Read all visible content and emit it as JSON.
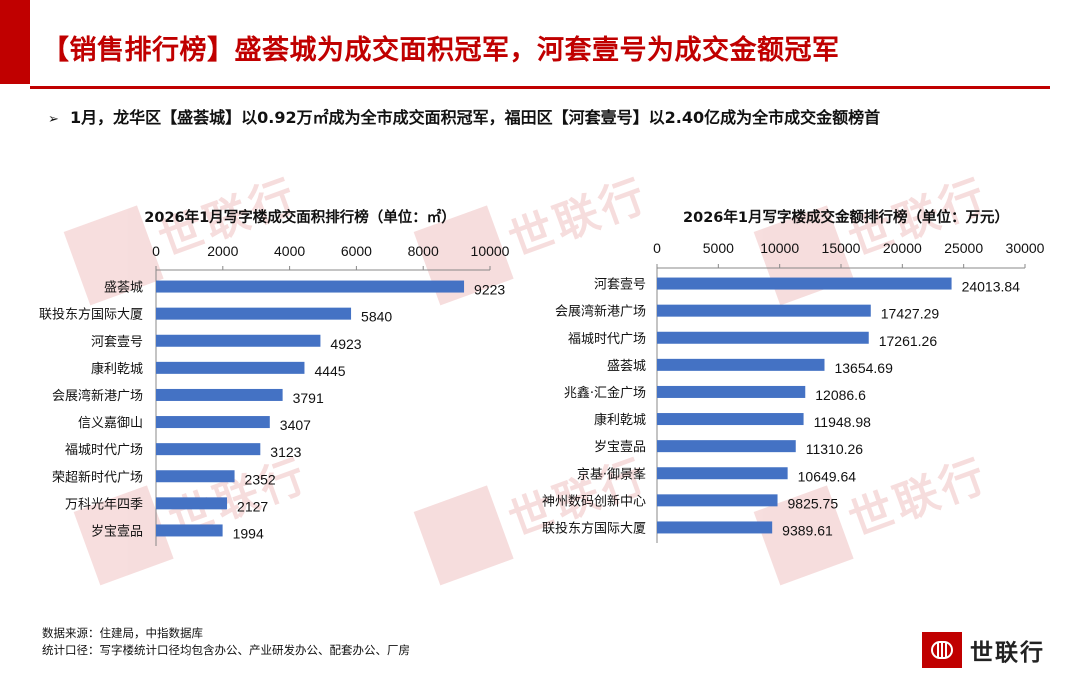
{
  "page": {
    "title": "【销售排行榜】盛荟城为成交面积冠军，河套壹号为成交金额冠军",
    "bullet_icon": "arrow-bullet-icon",
    "subtitle": "1月，龙华区【盛荟城】以0.92万㎡成为全市成交面积冠军，福田区【河套壹号】以2.40亿成为全市成交金额榜首",
    "footer": {
      "source": "数据来源：住建局，中指数据库",
      "scope": "统计口径：写字楼统计口径均包含办公、产业研发办公、配套办公、厂房"
    },
    "logo_text": "世联行",
    "watermark_text": "世联行",
    "colors": {
      "accent": "#c00000",
      "bar": "#4472c4"
    }
  },
  "chart_data": [
    {
      "type": "bar",
      "orientation": "horizontal",
      "title": "2026年1月写字楼成交面积排行榜（单位：㎡）",
      "categories": [
        "盛荟城",
        "联投东方国际大厦",
        "河套壹号",
        "康利乾城",
        "会展湾新港广场",
        "信义嘉御山",
        "福城时代广场",
        "荣超新时代广场",
        "万科光年四季",
        "岁宝壹品"
      ],
      "values": [
        9223,
        5840,
        4923,
        4445,
        3791,
        3407,
        3123,
        2352,
        2127,
        1994
      ],
      "value_labels": [
        "9223",
        "5840",
        "4923",
        "4445",
        "3791",
        "3407",
        "3123",
        "2352",
        "2127",
        "1994"
      ],
      "xlim": [
        0,
        10000
      ],
      "ticks": [
        0,
        2000,
        4000,
        6000,
        8000,
        10000
      ],
      "axis_position": "top",
      "grid": false,
      "legend": "none"
    },
    {
      "type": "bar",
      "orientation": "horizontal",
      "title": "2026年1月写字楼成交金额排行榜（单位：万元）",
      "categories": [
        "河套壹号",
        "会展湾新港广场",
        "福城时代广场",
        "盛荟城",
        "兆鑫·汇金广场",
        "康利乾城",
        "岁宝壹品",
        "京基·御景峯",
        "神州数码创新中心",
        "联投东方国际大厦"
      ],
      "values": [
        24013.84,
        17427.29,
        17261.26,
        13654.69,
        12086.6,
        11948.98,
        11310.26,
        10649.64,
        9825.75,
        9389.61
      ],
      "value_labels": [
        "24013.84",
        "17427.29",
        "17261.26",
        "13654.69",
        "12086.6",
        "11948.98",
        "11310.26",
        "10649.64",
        "9825.75",
        "9389.61"
      ],
      "xlim": [
        0,
        30000
      ],
      "ticks": [
        0,
        5000,
        10000,
        15000,
        20000,
        25000,
        30000
      ],
      "axis_position": "top",
      "grid": false,
      "legend": "none"
    }
  ]
}
